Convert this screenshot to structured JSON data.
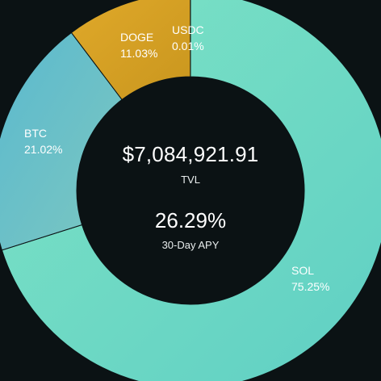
{
  "center": {
    "tvl_value": "$7,084,921.91",
    "tvl_label": "TVL",
    "apy_value": "26.29%",
    "apy_label": "30-Day APY"
  },
  "chart_data": {
    "type": "pie",
    "variant": "donut",
    "slices": [
      {
        "name": "SOL",
        "value": 75.25,
        "label": "75.25%",
        "color_start": "#7ee3c5",
        "color_end": "#5fcfc4"
      },
      {
        "name": "BTC",
        "value": 21.02,
        "label": "21.02%",
        "color_start": "#5ab9cf",
        "color_end": "#7cc7c0"
      },
      {
        "name": "DOGE",
        "value": 11.03,
        "label": "11.03%",
        "color_start": "#e0a92a",
        "color_end": "#c9961e"
      },
      {
        "name": "USDC",
        "value": 0.01,
        "label": "0.01%",
        "color_start": "#f1f1f1",
        "color_end": "#f1f1f1"
      }
    ],
    "background": "#0b1214",
    "hole_color": "#0b1214"
  }
}
